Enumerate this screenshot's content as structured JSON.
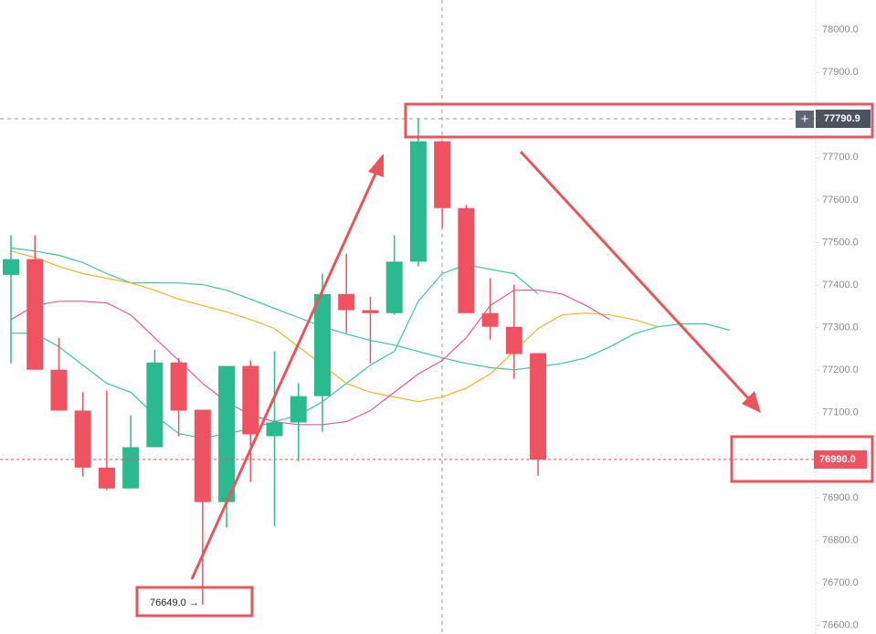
{
  "chart_data": {
    "type": "candlestick",
    "up_color": "#2bb98f",
    "down_color": "#ef5361",
    "open": [
      77424,
      77461,
      77201,
      77105,
      76971,
      76922,
      77019,
      77218,
      77107,
      76890,
      77210,
      77045,
      77077,
      77139,
      77379,
      77341,
      77334,
      77455,
      77738,
      77581,
      77334,
      77302,
      77240
    ],
    "high": [
      77517,
      77517,
      77276,
      77148,
      77152,
      77094,
      77248,
      77229,
      77107,
      77210,
      77223,
      77244,
      77169,
      77427,
      77474,
      77373,
      77517,
      77790.9,
      77738,
      77588,
      77416,
      77401,
      77240
    ],
    "low": [
      77216,
      77201,
      77105,
      76950,
      76918,
      76922,
      77019,
      77045,
      76649,
      76830,
      76937,
      76834,
      76986,
      77055,
      77287,
      77216,
      77330,
      77444,
      77534,
      77334,
      77272,
      77180,
      76952
    ],
    "close": [
      77461,
      77201,
      77105,
      76971,
      76922,
      77019,
      77218,
      77105,
      76890,
      77210,
      77049,
      77077,
      77139,
      77379,
      77341,
      77334,
      77455,
      77738,
      77581,
      77334,
      77302,
      77238,
      76990
    ],
    "lines": [
      {
        "color": "#3cc3a3",
        "values": [
          77487,
          77480,
          77470,
          77453,
          77427,
          77405,
          77405,
          77405,
          77401,
          77388,
          77367,
          77345,
          77324,
          77302,
          77285,
          77270,
          77259,
          77244,
          77229,
          77216,
          77206,
          77201,
          77208,
          77216,
          77229,
          77255,
          77285,
          77302,
          77309,
          77309,
          77294
        ]
      },
      {
        "color": "#3cc3a3",
        "values": [
          77287,
          77287,
          77255,
          77212,
          77169,
          77148,
          77094,
          77051,
          77040,
          77051,
          77062,
          77079,
          77094,
          77126,
          77169,
          77212,
          77244,
          77362,
          77427,
          77448,
          77437,
          77427,
          77379
        ]
      },
      {
        "color": "#f0b429",
        "values": [
          77480,
          77465,
          77444,
          77427,
          77416,
          77405,
          77388,
          77367,
          77352,
          77337,
          77319,
          77298,
          77255,
          77212,
          77169,
          77148,
          77137,
          77126,
          77137,
          77158,
          77191,
          77244,
          77298,
          77330,
          77334,
          77330,
          77319,
          77302
        ]
      },
      {
        "color": "#e0589c",
        "values": [
          77319,
          77352,
          77362,
          77362,
          77358,
          77330,
          77276,
          77223,
          77169,
          77126,
          77094,
          77079,
          77072,
          77072,
          77079,
          77105,
          77148,
          77191,
          77223,
          77276,
          77352,
          77388,
          77388,
          77379,
          77352,
          77319
        ]
      }
    ],
    "ylim": [
      76580,
      78070
    ],
    "yticks": [
      {
        "value": 76600,
        "label": "76600.0"
      },
      {
        "value": 76700,
        "label": "76700.0"
      },
      {
        "value": 76800,
        "label": "76800.0"
      },
      {
        "value": 76900,
        "label": "76900.0"
      },
      {
        "value": 77000,
        "label": "77000.0"
      },
      {
        "value": 77100,
        "label": "77100.0"
      },
      {
        "value": 77200,
        "label": "77200.0"
      },
      {
        "value": 77300,
        "label": "77300.0"
      },
      {
        "value": 77400,
        "label": "77400.0"
      },
      {
        "value": 77500,
        "label": "77500.0"
      },
      {
        "value": 77600,
        "label": "77600.0"
      },
      {
        "value": 77700,
        "label": "77700.0"
      },
      {
        "value": 77800,
        "label": "77800.0"
      },
      {
        "value": 77900,
        "label": "77900.0"
      },
      {
        "value": 78000,
        "label": "78000.0"
      }
    ],
    "crosshair_price": {
      "value": 77790.9,
      "label": "77790.9"
    },
    "last_price": {
      "value": 76990,
      "label": "76990.0"
    },
    "low_annotation": "76649.0 →"
  }
}
